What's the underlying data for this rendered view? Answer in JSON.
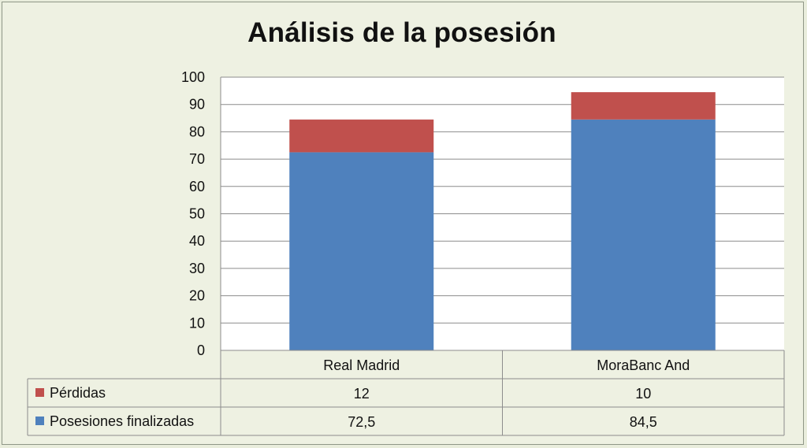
{
  "chart_data": {
    "type": "bar",
    "stacked": true,
    "title": "Análisis de la posesión",
    "categories": [
      "Real Madrid",
      "MoraBanc And"
    ],
    "series": [
      {
        "name": "Posesiones finalizadas",
        "values": [
          72.5,
          84.5
        ],
        "labels": [
          "72,5",
          "84,5"
        ],
        "color": "#4f81bd"
      },
      {
        "name": "Pérdidas",
        "values": [
          12,
          10
        ],
        "labels": [
          "12",
          "10"
        ],
        "color": "#c0504d"
      }
    ],
    "ylim": [
      0,
      100
    ],
    "yticks": [
      0,
      10,
      20,
      30,
      40,
      50,
      60,
      70,
      80,
      90,
      100
    ],
    "grid": true,
    "legend": "data-table"
  }
}
